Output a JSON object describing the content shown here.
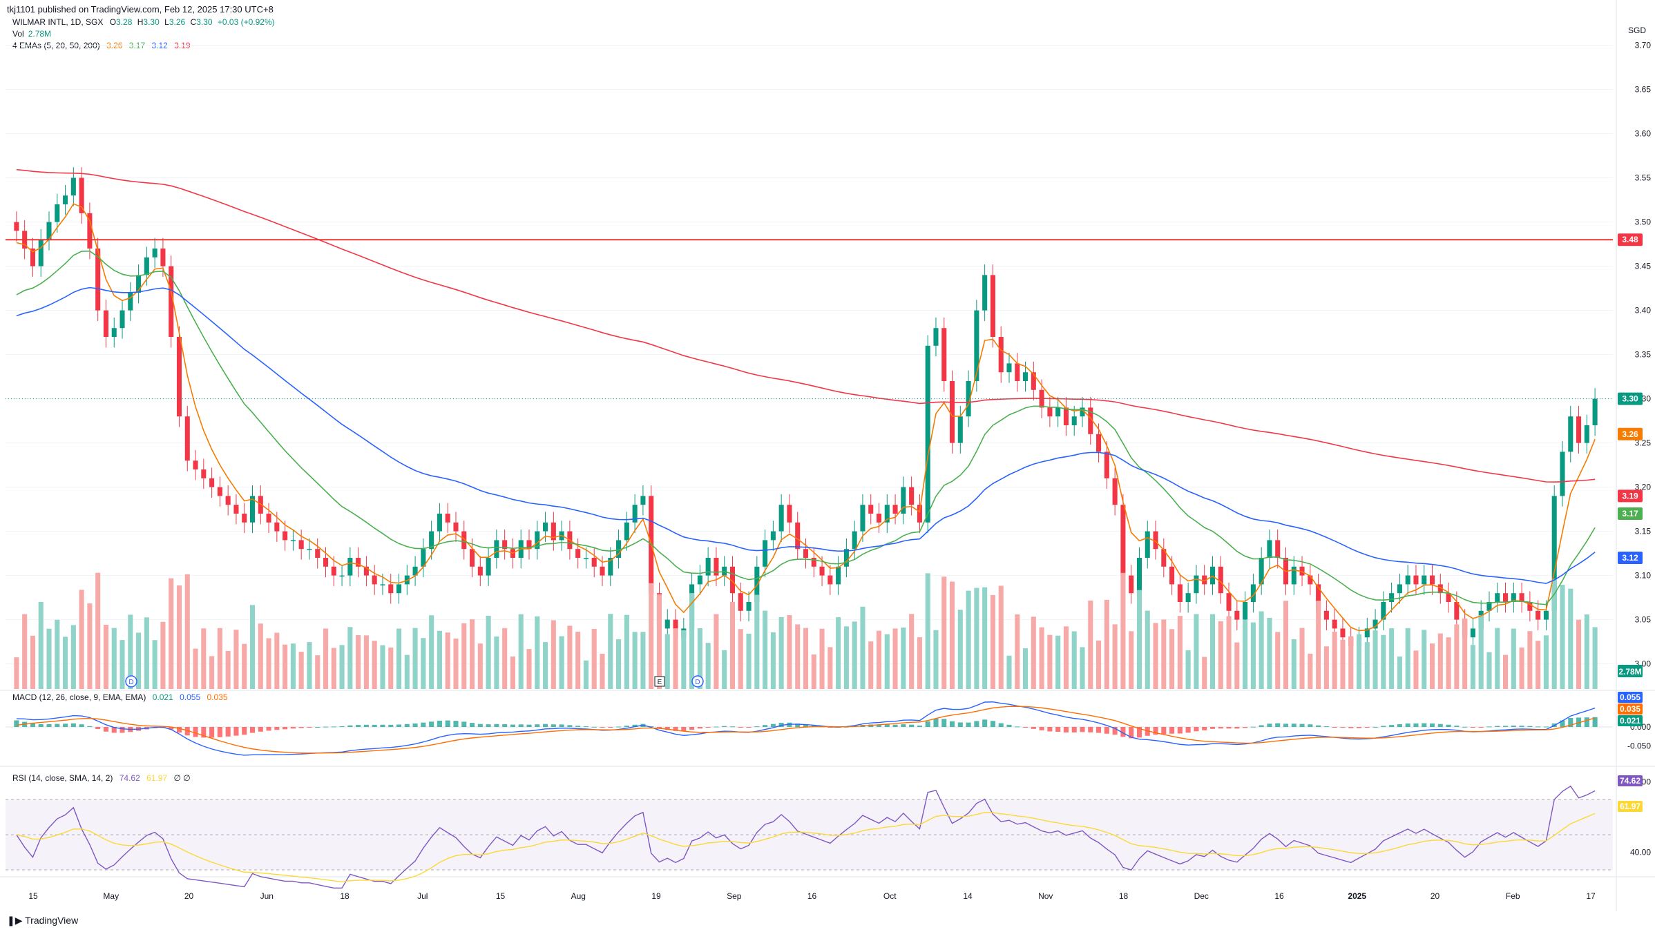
{
  "header": {
    "publisher": "tkj1101 published on TradingView.com, Feb 12, 2025 17:30 UTC+8",
    "symbol": "WILMAR INTL, 1D, SGX",
    "ohlc": {
      "o_label": "O",
      "o": "3.28",
      "h_label": "H",
      "h": "3.30",
      "l_label": "L",
      "l": "3.26",
      "c_label": "C",
      "c": "3.30",
      "change": "+0.03 (+0.92%)"
    },
    "vol_label": "Vol",
    "vol_value": "2.78M",
    "ema_label": "4 EMAs (5, 20, 50, 200)",
    "ema_values": [
      "3.26",
      "3.17",
      "3.12",
      "3.19"
    ],
    "macd_label": "MACD (12, 26, close, 9, EMA, EMA)",
    "macd_values": [
      "0.021",
      "0.055",
      "0.035"
    ],
    "rsi_label": "RSI (14, close, SMA, 14, 2)",
    "rsi_values": [
      "74.62",
      "61.97"
    ],
    "rsi_extra": "∅ ∅"
  },
  "currency": "SGD",
  "footer_logo": "TradingView",
  "colors": {
    "up": "#089981",
    "down": "#f23645",
    "up_vol": "#8fd3c9",
    "down_vol": "#f7a9a7",
    "ema5": "#f57c00",
    "ema20": "#4caf50",
    "ema50": "#2962ff",
    "ema200": "#f23645",
    "resistance": "#e53935",
    "macd": "#2962ff",
    "signal": "#ff6d00",
    "rsi": "#7e57c2",
    "rsi_ma": "#fdd835"
  },
  "chart_data": {
    "type": "candlestick",
    "price_axis": {
      "min": 2.97,
      "max": 3.72,
      "ticks": [
        "3.70",
        "3.65",
        "3.60",
        "3.55",
        "3.50",
        "3.45",
        "3.40",
        "3.35",
        "3.30",
        "3.25",
        "3.20",
        "3.15",
        "3.10",
        "3.05",
        "3.00"
      ]
    },
    "time_axis": [
      "15",
      "May",
      "20",
      "Jun",
      "18",
      "Jul",
      "15",
      "Aug",
      "19",
      "Sep",
      "16",
      "Oct",
      "14",
      "Nov",
      "18",
      "Dec",
      "16",
      "2025",
      "20",
      "Feb",
      "17"
    ],
    "resistance_level": 3.48,
    "last_price": 3.3,
    "price_tags": [
      {
        "label": "3.48",
        "value": 3.48,
        "color": "#f23645"
      },
      {
        "label": "3.30",
        "value": 3.3,
        "color": "#089981"
      },
      {
        "label": "3.26",
        "value": 3.26,
        "color": "#f57c00"
      },
      {
        "label": "3.19",
        "value": 3.19,
        "color": "#f23645"
      },
      {
        "label": "3.17",
        "value": 3.17,
        "color": "#4caf50"
      },
      {
        "label": "3.12",
        "value": 3.12,
        "color": "#2962ff"
      }
    ],
    "volume_tag": "2.78M",
    "event_markers": [
      "D",
      "E",
      "D"
    ],
    "macd_axis": {
      "ticks": [
        "0.000",
        "-0.050"
      ],
      "tags": [
        {
          "label": "0.055",
          "color": "#2962ff"
        },
        {
          "label": "0.035",
          "color": "#ff6d00"
        },
        {
          "label": "0.021",
          "color": "#089981"
        }
      ]
    },
    "rsi_axis": {
      "ticks": [
        "80.00",
        "40.00"
      ],
      "tags": [
        {
          "label": "74.62",
          "color": "#7e57c2"
        },
        {
          "label": "61.97",
          "color": "#fdd835"
        }
      ]
    },
    "closes": [
      3.49,
      3.47,
      3.45,
      3.48,
      3.5,
      3.52,
      3.53,
      3.55,
      3.51,
      3.47,
      3.4,
      3.37,
      3.38,
      3.4,
      3.42,
      3.44,
      3.46,
      3.47,
      3.45,
      3.37,
      3.28,
      3.23,
      3.22,
      3.21,
      3.2,
      3.19,
      3.18,
      3.17,
      3.16,
      3.19,
      3.17,
      3.16,
      3.15,
      3.14,
      3.14,
      3.13,
      3.13,
      3.12,
      3.11,
      3.1,
      3.1,
      3.12,
      3.11,
      3.1,
      3.09,
      3.09,
      3.08,
      3.09,
      3.1,
      3.11,
      3.13,
      3.15,
      3.17,
      3.16,
      3.15,
      3.13,
      3.11,
      3.1,
      3.12,
      3.14,
      3.13,
      3.12,
      3.14,
      3.13,
      3.15,
      3.16,
      3.14,
      3.15,
      3.13,
      3.12,
      3.12,
      3.11,
      3.1,
      3.12,
      3.14,
      3.16,
      3.18,
      3.19,
      3.08,
      3.04,
      3.05,
      3.03,
      3.04,
      3.09,
      3.1,
      3.12,
      3.1,
      3.11,
      3.08,
      3.06,
      3.07,
      3.11,
      3.14,
      3.15,
      3.18,
      3.16,
      3.13,
      3.12,
      3.11,
      3.1,
      3.09,
      3.11,
      3.13,
      3.15,
      3.18,
      3.17,
      3.16,
      3.18,
      3.17,
      3.2,
      3.18,
      3.16,
      3.36,
      3.38,
      3.32,
      3.25,
      3.28,
      3.32,
      3.4,
      3.44,
      3.37,
      3.33,
      3.34,
      3.32,
      3.33,
      3.31,
      3.29,
      3.28,
      3.29,
      3.27,
      3.28,
      3.29,
      3.26,
      3.24,
      3.21,
      3.18,
      3.1,
      3.08,
      3.12,
      3.15,
      3.13,
      3.11,
      3.09,
      3.07,
      3.08,
      3.1,
      3.09,
      3.11,
      3.08,
      3.06,
      3.05,
      3.07,
      3.09,
      3.12,
      3.14,
      3.12,
      3.09,
      3.11,
      3.1,
      3.09,
      3.06,
      3.05,
      3.04,
      3.03,
      3.02,
      3.03,
      3.04,
      3.05,
      3.07,
      3.08,
      3.09,
      3.1,
      3.09,
      3.1,
      3.09,
      3.08,
      3.07,
      3.05,
      3.03,
      3.04,
      3.06,
      3.07,
      3.08,
      3.07,
      3.08,
      3.07,
      3.06,
      3.05,
      3.06,
      3.19,
      3.24,
      3.28,
      3.25,
      3.27,
      3.3
    ]
  }
}
